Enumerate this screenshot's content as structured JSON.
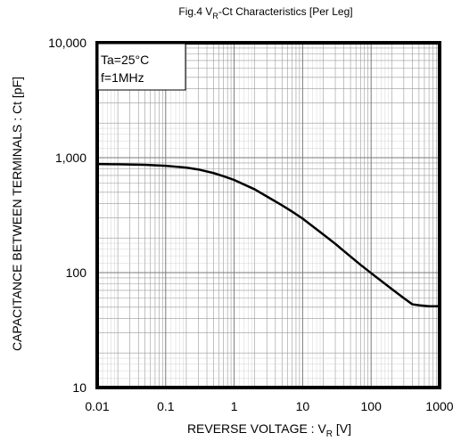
{
  "chart_data": {
    "type": "line",
    "title": {
      "prefix": "Fig.4 V",
      "subscript": "R",
      "suffix": "-Ct Characteristics [Per Leg]"
    },
    "xlabel": {
      "prefix": "REVERSE VOLTAGE : V",
      "subscript": "R",
      "suffix": " [V]"
    },
    "ylabel": "CAPACITANCE BETWEEN TERMINALS : Ct [pF]",
    "x_scale": "log",
    "y_scale": "log",
    "xlim": [
      0.01,
      1000
    ],
    "ylim": [
      10,
      10000
    ],
    "x_ticks": [
      {
        "value": 0.01,
        "label": "0.01"
      },
      {
        "value": 0.1,
        "label": "0.1"
      },
      {
        "value": 1,
        "label": "1"
      },
      {
        "value": 10,
        "label": "10"
      },
      {
        "value": 100,
        "label": "100"
      },
      {
        "value": 1000,
        "label": "1000"
      }
    ],
    "y_ticks": [
      {
        "value": 10,
        "label": "10"
      },
      {
        "value": 100,
        "label": "100"
      },
      {
        "value": 1000,
        "label": "1,000"
      },
      {
        "value": 10000,
        "label": "10,000"
      }
    ],
    "grid": true,
    "conditions": [
      "Ta=25°C",
      "f=1MHz"
    ],
    "series": [
      {
        "x": [
          0.01,
          0.02,
          0.05,
          0.1,
          0.2,
          0.3,
          0.5,
          0.7,
          1,
          2,
          3,
          5,
          7,
          10,
          20,
          30,
          50,
          70,
          100,
          200,
          300,
          400,
          500,
          700,
          1000
        ],
        "y": [
          880,
          876,
          866,
          850,
          820,
          790,
          735,
          690,
          640,
          530,
          460,
          385,
          340,
          295,
          215,
          178,
          138,
          117,
          99,
          72,
          60,
          53,
          52,
          51,
          51
        ]
      }
    ],
    "colors": {
      "line": "#000000",
      "grid": "#9a9a9a",
      "frame": "#000000"
    }
  }
}
